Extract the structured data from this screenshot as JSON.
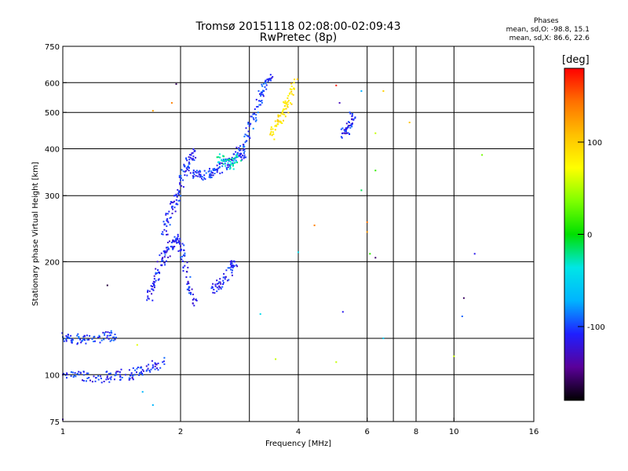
{
  "title_line1": "Tromsø 20151118 02:08:00-02:09:43",
  "title_line2": "RwPretec (8p)",
  "phases": {
    "header": "Phases",
    "line_o": "mean, sd,O: -98.8, 15.1",
    "line_x": "mean, sd,X: 86.6, 22.6"
  },
  "colorbar": {
    "unit": "[deg]",
    "tick_labels": [
      "100",
      "0",
      "-100"
    ],
    "tick_values": [
      100,
      0,
      -100
    ],
    "range": [
      -180,
      180
    ],
    "colors": [
      "#000000",
      "#5a0099",
      "#1f1fff",
      "#00b4ff",
      "#00e6e6",
      "#00e000",
      "#7fff00",
      "#ffff00",
      "#ffc000",
      "#ff7000",
      "#ff0000"
    ]
  },
  "chart_data": {
    "type": "scatter",
    "xlabel": "Frequency [MHz]",
    "ylabel": "Stationary phase Virtual Height [km]",
    "x_scale": "log",
    "y_scale": "log",
    "xlim": [
      1,
      16
    ],
    "ylim": [
      75,
      750
    ],
    "x_tick_labels": [
      "1",
      "2",
      "4",
      "6",
      "8",
      "10",
      "16"
    ],
    "x_tick_values": [
      1,
      2,
      4,
      6,
      8,
      10,
      16
    ],
    "y_tick_labels": [
      "750",
      "600",
      "500",
      "400",
      "300",
      "200",
      "100",
      "75"
    ],
    "y_tick_values": [
      750,
      600,
      500,
      400,
      300,
      200,
      100,
      75
    ],
    "x_grid": [
      2,
      3,
      4,
      6,
      7,
      8,
      10
    ],
    "y_grid": [
      100,
      125,
      200,
      300,
      400,
      500,
      600
    ],
    "grid": true,
    "clusters": [
      {
        "name": "o-trace-low",
        "phase": -110,
        "points": [
          [
            1.0,
            100
          ],
          [
            1.1,
            100
          ],
          [
            1.2,
            99
          ],
          [
            1.3,
            99
          ],
          [
            1.4,
            100
          ],
          [
            1.5,
            101
          ],
          [
            1.6,
            103
          ],
          [
            1.7,
            106
          ],
          [
            1.8,
            108
          ]
        ]
      },
      {
        "name": "o-trace-100km",
        "phase": -105,
        "points": [
          [
            1.0,
            126
          ],
          [
            1.04,
            125
          ],
          [
            1.1,
            125
          ],
          [
            1.2,
            126
          ],
          [
            1.3,
            127
          ],
          [
            1.36,
            128
          ]
        ]
      },
      {
        "name": "o-trace-E-to-F1",
        "phase": -110,
        "points": [
          [
            1.65,
            160
          ],
          [
            1.7,
            175
          ],
          [
            1.75,
            190
          ],
          [
            1.8,
            205
          ],
          [
            1.85,
            215
          ],
          [
            1.9,
            225
          ],
          [
            1.95,
            230
          ],
          [
            2.0,
            220
          ],
          [
            2.05,
            195
          ],
          [
            2.1,
            170
          ],
          [
            2.15,
            155
          ]
        ]
      },
      {
        "name": "o-trace-F1-rise",
        "phase": -108,
        "points": [
          [
            1.8,
            240
          ],
          [
            1.85,
            260
          ],
          [
            1.9,
            280
          ],
          [
            1.95,
            300
          ],
          [
            2.0,
            330
          ],
          [
            2.05,
            360
          ],
          [
            2.1,
            380
          ],
          [
            2.15,
            390
          ]
        ]
      },
      {
        "name": "o-trace-F1-plateau",
        "phase": -105,
        "points": [
          [
            2.1,
            350
          ],
          [
            2.2,
            345
          ],
          [
            2.3,
            340
          ],
          [
            2.4,
            345
          ],
          [
            2.5,
            355
          ],
          [
            2.6,
            365
          ],
          [
            2.7,
            375
          ],
          [
            2.8,
            390
          ],
          [
            2.9,
            405
          ]
        ]
      },
      {
        "name": "o-trace-F2-rise",
        "phase": -102,
        "points": [
          [
            2.85,
            380
          ],
          [
            2.9,
            410
          ],
          [
            3.0,
            460
          ],
          [
            3.1,
            510
          ],
          [
            3.2,
            560
          ],
          [
            3.3,
            600
          ],
          [
            3.4,
            630
          ]
        ]
      },
      {
        "name": "x-trace-F2",
        "phase": 90,
        "points": [
          [
            3.4,
            440
          ],
          [
            3.5,
            460
          ],
          [
            3.6,
            490
          ],
          [
            3.7,
            520
          ],
          [
            3.8,
            560
          ],
          [
            3.9,
            600
          ]
        ]
      },
      {
        "name": "mixed-trace-F1-x",
        "phase": -30,
        "points": [
          [
            2.5,
            380
          ],
          [
            2.6,
            370
          ],
          [
            2.7,
            365
          ],
          [
            2.8,
            380
          ]
        ]
      },
      {
        "name": "o-trace-2.5MHz",
        "phase": -110,
        "points": [
          [
            2.4,
            170
          ],
          [
            2.5,
            175
          ],
          [
            2.6,
            180
          ],
          [
            2.7,
            195
          ],
          [
            2.75,
            200
          ]
        ]
      },
      {
        "name": "o-trace-5.5MHz",
        "phase": -110,
        "points": [
          [
            5.2,
            440
          ],
          [
            5.3,
            450
          ],
          [
            5.4,
            470
          ],
          [
            5.5,
            490
          ]
        ]
      },
      {
        "name": "scatter-noise",
        "phase": 0,
        "points": [
          [
            1.55,
            120
          ],
          [
            1.95,
            595
          ],
          [
            1.9,
            530
          ],
          [
            1.7,
            505
          ],
          [
            3.2,
            145
          ],
          [
            4.0,
            212
          ],
          [
            4.4,
            250
          ],
          [
            5.0,
            108
          ],
          [
            5.2,
            147
          ],
          [
            5.0,
            590
          ],
          [
            5.1,
            530
          ],
          [
            6.1,
            210
          ],
          [
            6.3,
            350
          ],
          [
            6.3,
            440
          ],
          [
            6.6,
            125
          ],
          [
            6.3,
            205
          ],
          [
            6.0,
            240
          ],
          [
            6.0,
            255
          ],
          [
            7.7,
            470
          ],
          [
            10.0,
            112
          ],
          [
            10.5,
            143
          ],
          [
            10.6,
            160
          ],
          [
            11.3,
            210
          ],
          [
            11.8,
            385
          ],
          [
            6.6,
            570
          ],
          [
            5.8,
            570
          ],
          [
            5.8,
            310
          ],
          [
            3.5,
            110
          ],
          [
            1.6,
            90
          ],
          [
            1.7,
            83
          ],
          [
            1.0,
            76
          ],
          [
            1.3,
            173
          ]
        ]
      }
    ]
  }
}
